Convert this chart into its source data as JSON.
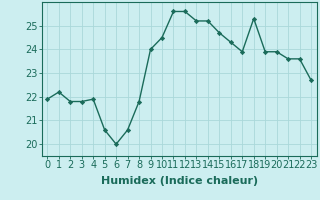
{
  "x": [
    0,
    1,
    2,
    3,
    4,
    5,
    6,
    7,
    8,
    9,
    10,
    11,
    12,
    13,
    14,
    15,
    16,
    17,
    18,
    19,
    20,
    21,
    22,
    23
  ],
  "y": [
    21.9,
    22.2,
    21.8,
    21.8,
    21.9,
    20.6,
    20.0,
    20.6,
    21.8,
    24.0,
    24.5,
    25.6,
    25.6,
    25.2,
    25.2,
    24.7,
    24.3,
    23.9,
    25.3,
    23.9,
    23.9,
    23.6,
    23.6,
    22.7
  ],
  "line_color": "#1a6b5a",
  "marker": "D",
  "marker_size": 2.2,
  "background_color": "#cceef0",
  "grid_color": "#aad8da",
  "xlabel": "Humidex (Indice chaleur)",
  "xlim": [
    -0.5,
    23.5
  ],
  "ylim": [
    19.5,
    26.0
  ],
  "yticks": [
    20,
    21,
    22,
    23,
    24,
    25
  ],
  "xticks": [
    0,
    1,
    2,
    3,
    4,
    5,
    6,
    7,
    8,
    9,
    10,
    11,
    12,
    13,
    14,
    15,
    16,
    17,
    18,
    19,
    20,
    21,
    22,
    23
  ],
  "xtick_labels": [
    "0",
    "1",
    "2",
    "3",
    "4",
    "5",
    "6",
    "7",
    "8",
    "9",
    "10",
    "11",
    "12",
    "13",
    "14",
    "15",
    "16",
    "17",
    "18",
    "19",
    "20",
    "21",
    "22",
    "23"
  ],
  "xlabel_fontsize": 8,
  "tick_fontsize": 7
}
